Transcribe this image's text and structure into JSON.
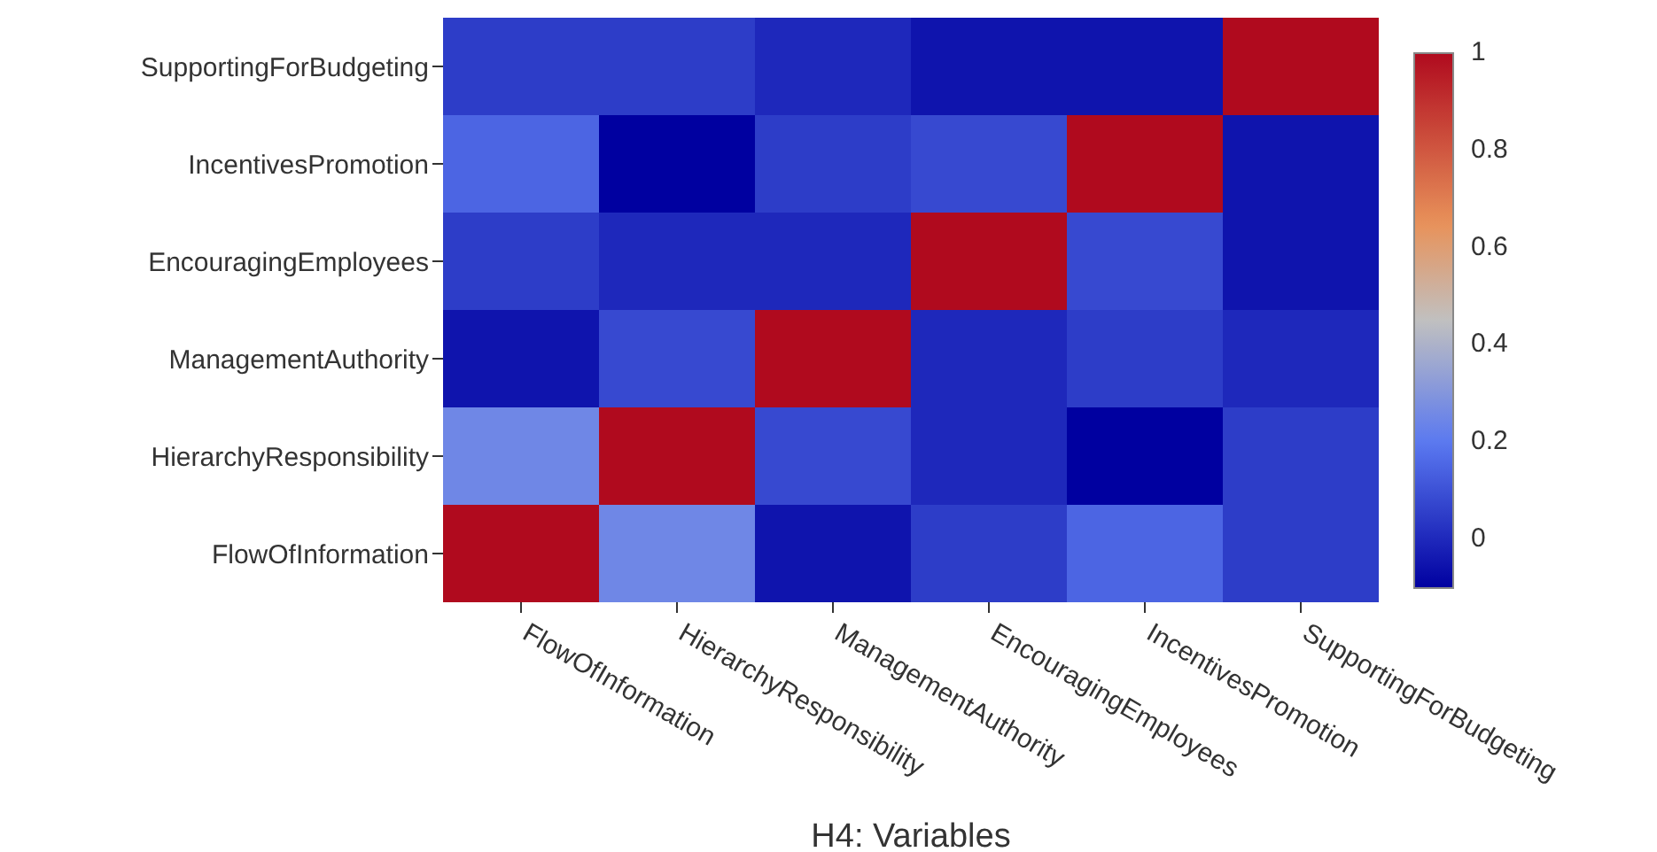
{
  "chart_data": {
    "type": "heatmap",
    "xlabel": "H4: Variables",
    "categories": [
      "FlowOfInformation",
      "HierarchyResponsibility",
      "ManagementAuthority",
      "EncouragingEmployees",
      "IncentivesPromotion",
      "SupportingForBudgeting"
    ],
    "y_categories": [
      "SupportingForBudgeting",
      "IncentivesPromotion",
      "EncouragingEmployees",
      "ManagementAuthority",
      "HierarchyResponsibility",
      "FlowOfInformation"
    ],
    "cells": [
      [
        0.05,
        0.05,
        0.0,
        -0.05,
        -0.05,
        1
      ],
      [
        0.15,
        -0.1,
        0.05,
        0.08,
        1,
        -0.05
      ],
      [
        0.05,
        0.0,
        0.0,
        1,
        0.08,
        -0.05
      ],
      [
        -0.05,
        0.08,
        1,
        0.0,
        0.05,
        0.0
      ],
      [
        0.25,
        1,
        0.08,
        0.0,
        -0.1,
        0.05
      ],
      [
        1,
        0.25,
        -0.05,
        0.05,
        0.15,
        0.05
      ]
    ],
    "clim": [
      -0.1,
      1
    ],
    "cticks": [
      0,
      0.2,
      0.4,
      0.6,
      0.8,
      1
    ]
  }
}
